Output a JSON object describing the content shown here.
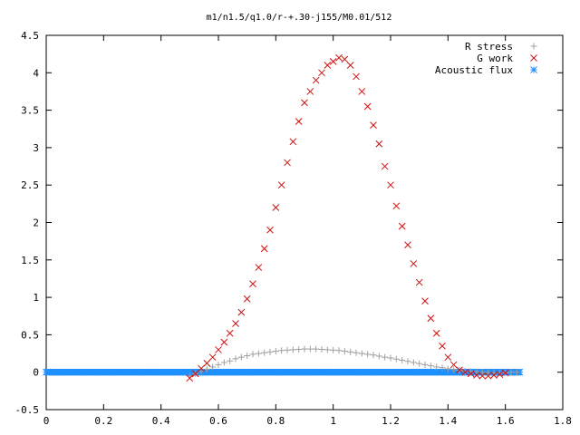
{
  "chart_data": {
    "type": "scatter",
    "title": "m1/n1.5/q1.0/r-+.30-j155/M0.01/512",
    "xlabel": "",
    "ylabel": "",
    "xlim": [
      0,
      1.8
    ],
    "ylim": [
      -0.5,
      4.5
    ],
    "xticks": [
      "0",
      "0.2",
      "0.4",
      "0.6",
      "0.8",
      "1",
      "1.2",
      "1.4",
      "1.6",
      "1.8"
    ],
    "yticks": [
      "-0.5",
      "0",
      "0.5",
      "1",
      "1.5",
      "2",
      "2.5",
      "3",
      "3.5",
      "4",
      "4.5"
    ],
    "grid": false,
    "legend_position": "top-right",
    "series": [
      {
        "name": "R stress",
        "marker": "plus",
        "color": "#a0a0a0",
        "x": [
          0.5,
          0.52,
          0.54,
          0.56,
          0.58,
          0.6,
          0.62,
          0.64,
          0.66,
          0.68,
          0.7,
          0.72,
          0.74,
          0.76,
          0.78,
          0.8,
          0.82,
          0.84,
          0.86,
          0.88,
          0.9,
          0.92,
          0.94,
          0.96,
          0.98,
          1.0,
          1.02,
          1.04,
          1.06,
          1.08,
          1.1,
          1.12,
          1.14,
          1.16,
          1.18,
          1.2,
          1.22,
          1.24,
          1.26,
          1.28,
          1.3,
          1.32,
          1.34,
          1.36,
          1.38,
          1.4,
          1.42,
          1.44,
          1.46,
          1.48,
          1.5,
          1.52,
          1.54,
          1.56,
          1.58,
          1.6,
          1.62,
          1.64
        ],
        "y": [
          -0.05,
          -0.02,
          0.01,
          0.04,
          0.07,
          0.1,
          0.13,
          0.15,
          0.18,
          0.2,
          0.22,
          0.24,
          0.25,
          0.26,
          0.27,
          0.28,
          0.29,
          0.295,
          0.3,
          0.305,
          0.31,
          0.31,
          0.31,
          0.305,
          0.3,
          0.295,
          0.29,
          0.28,
          0.27,
          0.26,
          0.25,
          0.24,
          0.23,
          0.215,
          0.2,
          0.19,
          0.175,
          0.16,
          0.145,
          0.13,
          0.115,
          0.1,
          0.085,
          0.07,
          0.06,
          0.045,
          0.035,
          0.025,
          0.015,
          0.01,
          0.005,
          0.0,
          -0.005,
          -0.01,
          -0.01,
          -0.005,
          0.0,
          0.0
        ]
      },
      {
        "name": "G work",
        "marker": "cross",
        "color": "#d01010",
        "x": [
          0.5,
          0.52,
          0.54,
          0.56,
          0.58,
          0.6,
          0.62,
          0.64,
          0.66,
          0.68,
          0.7,
          0.72,
          0.74,
          0.76,
          0.78,
          0.8,
          0.82,
          0.84,
          0.86,
          0.88,
          0.9,
          0.92,
          0.94,
          0.96,
          0.98,
          1.0,
          1.02,
          1.04,
          1.06,
          1.08,
          1.1,
          1.12,
          1.14,
          1.16,
          1.18,
          1.2,
          1.22,
          1.24,
          1.26,
          1.28,
          1.3,
          1.32,
          1.34,
          1.36,
          1.38,
          1.4,
          1.42,
          1.44,
          1.46,
          1.48,
          1.5,
          1.52,
          1.54,
          1.56,
          1.58,
          1.6
        ],
        "y": [
          -0.08,
          -0.02,
          0.05,
          0.12,
          0.2,
          0.3,
          0.4,
          0.52,
          0.65,
          0.8,
          0.98,
          1.18,
          1.4,
          1.65,
          1.9,
          2.2,
          2.5,
          2.8,
          3.08,
          3.35,
          3.6,
          3.75,
          3.9,
          4.0,
          4.1,
          4.15,
          4.2,
          4.18,
          4.1,
          3.95,
          3.75,
          3.55,
          3.3,
          3.05,
          2.75,
          2.5,
          2.22,
          1.95,
          1.7,
          1.45,
          1.2,
          0.95,
          0.72,
          0.52,
          0.35,
          0.2,
          0.1,
          0.03,
          0.0,
          -0.02,
          -0.04,
          -0.05,
          -0.05,
          -0.04,
          -0.03,
          -0.01
        ]
      },
      {
        "name": "Acoustic flux",
        "marker": "star",
        "color": "#1e90ff",
        "x": [
          0.0,
          0.03,
          0.06,
          0.09,
          0.12,
          0.15,
          0.18,
          0.21,
          0.24,
          0.27,
          0.3,
          0.33,
          0.36,
          0.39,
          0.42,
          0.45,
          0.48,
          0.51,
          0.54,
          0.57,
          0.6,
          0.63,
          0.66,
          0.69,
          0.72,
          0.75,
          0.78,
          0.81,
          0.84,
          0.87,
          0.9,
          0.93,
          0.96,
          0.99,
          1.02,
          1.05,
          1.08,
          1.11,
          1.14,
          1.17,
          1.2,
          1.23,
          1.26,
          1.29,
          1.32,
          1.35,
          1.38,
          1.41,
          1.44,
          1.47,
          1.5,
          1.53,
          1.56,
          1.59,
          1.62,
          1.65
        ],
        "y": [
          0,
          0,
          0,
          0,
          0,
          0,
          0,
          0,
          0,
          0,
          0,
          0,
          0,
          0,
          0,
          0,
          0,
          0,
          0,
          0,
          0,
          0,
          0,
          0,
          0,
          0,
          0,
          0,
          0,
          0,
          0,
          0,
          0,
          0,
          0,
          0,
          0,
          0,
          0,
          0,
          0,
          0,
          0,
          0,
          0,
          0,
          0,
          0,
          0,
          0,
          0,
          0,
          0,
          0,
          0,
          0
        ]
      }
    ]
  }
}
